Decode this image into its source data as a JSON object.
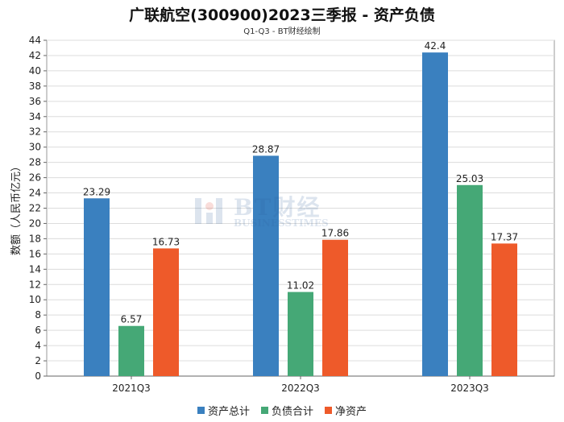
{
  "chart_data": {
    "type": "bar",
    "title": "广联航空(300900)2023三季报 - 资产负债",
    "subtitle": "Q1-Q3 - BT财经绘制",
    "ylabel": "数额（人民币亿元）",
    "xlabel": "",
    "categories": [
      "2021Q3",
      "2022Q3",
      "2023Q3"
    ],
    "ylim": [
      0,
      44
    ],
    "ytick_step": 2,
    "grid": true,
    "legend_position": "bottom",
    "series": [
      {
        "name": "资产总计",
        "color": "#3a80bf",
        "values": [
          23.29,
          28.87,
          42.4
        ]
      },
      {
        "name": "负债合计",
        "color": "#45a876",
        "values": [
          6.57,
          11.02,
          25.03
        ]
      },
      {
        "name": "净资产",
        "color": "#ee5a2a",
        "values": [
          16.73,
          17.86,
          17.37
        ]
      }
    ]
  },
  "watermark": {
    "main": "BT财经",
    "sub": "BUSINESSTIMES"
  }
}
